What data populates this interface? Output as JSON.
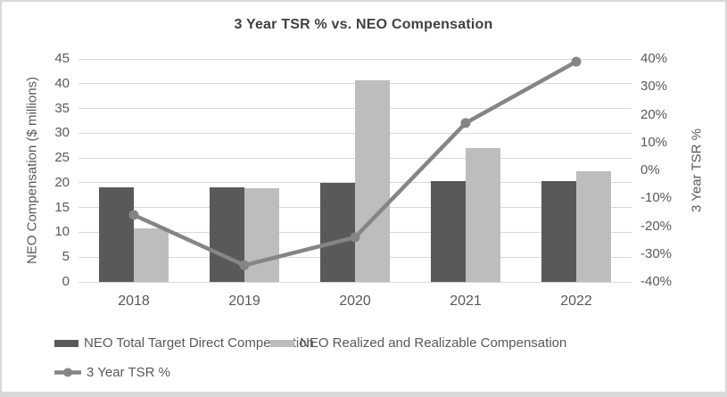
{
  "window": {
    "background": "#ffffff",
    "border_color": "#d9d9d9"
  },
  "chart_data": {
    "type": "bar",
    "combo": "clustered-bars-with-line-overlay",
    "title": "3 Year TSR % vs. NEO Compensation",
    "categories": [
      "2018",
      "2019",
      "2020",
      "2021",
      "2022"
    ],
    "series": [
      {
        "name": "NEO Total Target Direct Compensation",
        "kind": "bar",
        "axis": "left",
        "color": "#595959",
        "values": [
          19.0,
          19.0,
          20.0,
          20.3,
          20.3
        ]
      },
      {
        "name": "NEO Realized and Realizable Compensation",
        "kind": "bar",
        "axis": "left",
        "color": "#bdbdbd",
        "values": [
          10.8,
          18.9,
          40.6,
          27.0,
          22.3
        ]
      },
      {
        "name": "3 Year TSR %",
        "kind": "line",
        "axis": "right",
        "color": "#858585",
        "values": [
          -16,
          -34,
          -24,
          17,
          39
        ],
        "unit": "%"
      }
    ],
    "left_axis": {
      "label": "NEO Compensation ($ millions)",
      "min": 0,
      "max": 45,
      "step": 5,
      "tick_labels": [
        "45",
        "40",
        "35",
        "30",
        "25",
        "20",
        "15",
        "10",
        "5",
        "0"
      ]
    },
    "right_axis": {
      "label": "3 Year TSR %",
      "min": -40,
      "max": 40,
      "step": 10,
      "tick_labels": [
        "40%",
        "30%",
        "20%",
        "10%",
        "0%",
        "-10%",
        "-20%",
        "-30%",
        "-40%"
      ]
    },
    "gridlines": true,
    "grid_color": "#d9d9d9",
    "legend_position": "bottom-left"
  }
}
